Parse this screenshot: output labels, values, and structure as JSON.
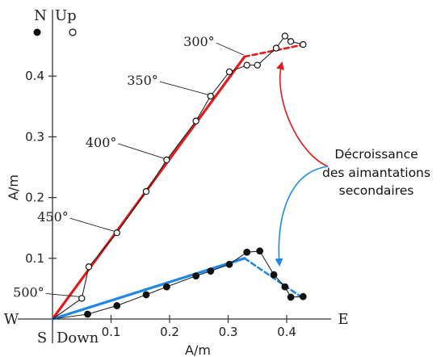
{
  "chart_data": {
    "type": "scatter",
    "subtype": "orthogonal vector (Zijderveld) plot",
    "xlabel": "A/m",
    "ylabel": "A/m",
    "xlim": [
      0,
      0.45
    ],
    "ylim": [
      0,
      0.45
    ],
    "x_ticks": [
      0.1,
      0.2,
      0.3,
      0.4
    ],
    "y_ticks": [
      0.1,
      0.2,
      0.3,
      0.4
    ],
    "x_tick_labels": [
      "0.1",
      "0.2",
      "0.3",
      "0.4"
    ],
    "y_tick_labels": [
      "0.1",
      "0.2",
      "0.3",
      "0.4"
    ],
    "grid": false,
    "directions": {
      "north": "N",
      "up": "Up",
      "south": "S",
      "down": "Down",
      "west": "W",
      "east": "E"
    },
    "temperature_labels": [
      {
        "text": "300°",
        "x": 0.332,
        "y": 0.432
      },
      {
        "text": "350°",
        "x": 0.27,
        "y": 0.367
      },
      {
        "text": "400°",
        "x": 0.195,
        "y": 0.262
      },
      {
        "text": "450°",
        "x": 0.11,
        "y": 0.142
      },
      {
        "text": "500°",
        "x": 0.052,
        "y": 0.034
      }
    ],
    "series": [
      {
        "marker": "open-circle",
        "values": [
          {
            "x": 0.0,
            "y": 0.0
          },
          {
            "x": 0.05,
            "y": 0.034
          },
          {
            "x": 0.062,
            "y": 0.086
          },
          {
            "x": 0.11,
            "y": 0.142
          },
          {
            "x": 0.16,
            "y": 0.21
          },
          {
            "x": 0.195,
            "y": 0.262
          },
          {
            "x": 0.245,
            "y": 0.326
          },
          {
            "x": 0.27,
            "y": 0.367
          },
          {
            "x": 0.302,
            "y": 0.407
          },
          {
            "x": 0.332,
            "y": 0.418
          },
          {
            "x": 0.35,
            "y": 0.418
          },
          {
            "x": 0.382,
            "y": 0.446
          },
          {
            "x": 0.397,
            "y": 0.466
          },
          {
            "x": 0.407,
            "y": 0.457
          },
          {
            "x": 0.428,
            "y": 0.452
          }
        ]
      },
      {
        "marker": "filled-circle",
        "values": [
          {
            "x": 0.0,
            "y": 0.0
          },
          {
            "x": 0.06,
            "y": 0.008
          },
          {
            "x": 0.11,
            "y": 0.022
          },
          {
            "x": 0.16,
            "y": 0.04
          },
          {
            "x": 0.195,
            "y": 0.053
          },
          {
            "x": 0.245,
            "y": 0.071
          },
          {
            "x": 0.27,
            "y": 0.079
          },
          {
            "x": 0.302,
            "y": 0.09
          },
          {
            "x": 0.332,
            "y": 0.11
          },
          {
            "x": 0.354,
            "y": 0.112
          },
          {
            "x": 0.378,
            "y": 0.073
          },
          {
            "x": 0.397,
            "y": 0.053
          },
          {
            "x": 0.407,
            "y": 0.036
          },
          {
            "x": 0.428,
            "y": 0.037
          }
        ]
      }
    ],
    "fit_lines": [
      {
        "color": "#e31a1c",
        "from": [
          0.0,
          0.0
        ],
        "to": [
          0.328,
          0.432
        ]
      },
      {
        "color": "#e31a1c",
        "dashed": true,
        "from": [
          0.328,
          0.432
        ],
        "to": [
          0.43,
          0.452
        ]
      },
      {
        "color": "#1e88e5",
        "from": [
          0.0,
          0.0
        ],
        "to": [
          0.328,
          0.1
        ]
      },
      {
        "color": "#1e88e5",
        "dashed": true,
        "from": [
          0.328,
          0.1
        ],
        "to": [
          0.43,
          0.033
        ]
      }
    ],
    "annotation": {
      "lines": [
        "Décroissance",
        "des aimantations",
        "secondaires"
      ],
      "arrow_colors": [
        "#e31a1c",
        "#1e88e5"
      ]
    }
  }
}
